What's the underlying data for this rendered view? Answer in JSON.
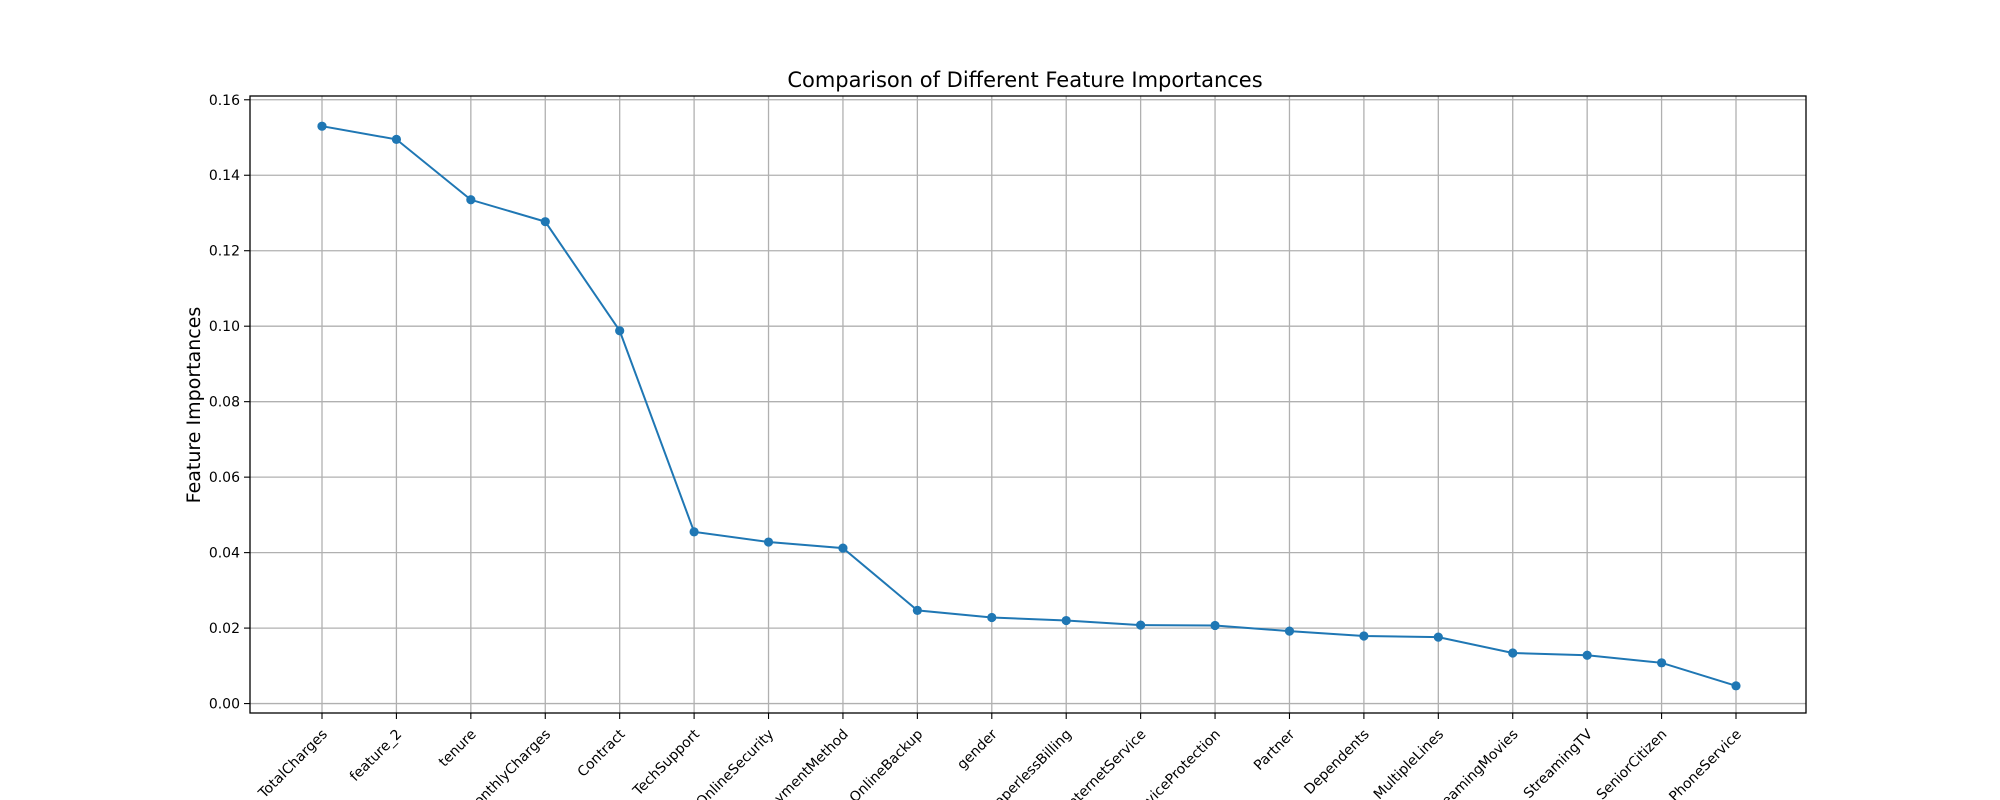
{
  "chart_data": {
    "type": "line",
    "title": "Comparison of Different Feature Importances",
    "xlabel": "",
    "ylabel": "Feature Importances",
    "categories": [
      "TotalCharges",
      "feature_2",
      "tenure",
      "MonthlyCharges",
      "Contract",
      "TechSupport",
      "OnlineSecurity",
      "PaymentMethod",
      "OnlineBackup",
      "gender",
      "PaperlessBilling",
      "InternetService",
      "DeviceProtection",
      "Partner",
      "Dependents",
      "MultipleLines",
      "StreamingMovies",
      "StreamingTV",
      "SeniorCitizen",
      "PhoneService"
    ],
    "values": [
      0.153,
      0.1495,
      0.1335,
      0.1277,
      0.0988,
      0.0455,
      0.0428,
      0.0412,
      0.0247,
      0.0228,
      0.022,
      0.0208,
      0.0207,
      0.0192,
      0.0179,
      0.0176,
      0.0134,
      0.0128,
      0.0108,
      0.0047
    ],
    "ylim": [
      -0.0025,
      0.161
    ],
    "yticks": [
      "0.00",
      "0.02",
      "0.04",
      "0.06",
      "0.08",
      "0.10",
      "0.12",
      "0.14",
      "0.16"
    ],
    "grid": true,
    "line_color": "#1f77b4"
  }
}
